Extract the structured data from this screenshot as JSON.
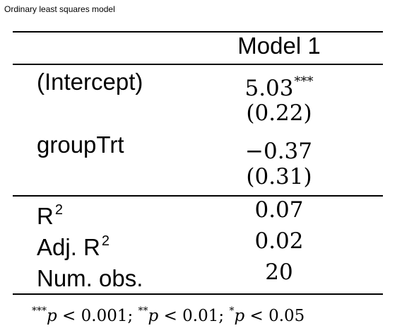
{
  "caption": "Ordinary least squares model",
  "table": {
    "model_header": "Model 1",
    "rows": [
      {
        "term": "(Intercept)",
        "estimate": "5.03",
        "stars": "***",
        "se": "(0.22)"
      },
      {
        "term": "groupTrt",
        "estimate": "−0.37",
        "stars": "",
        "se": "(0.31)"
      }
    ],
    "stats": [
      {
        "label": "R",
        "sup": "2",
        "value": "0.07"
      },
      {
        "label": "Adj. R",
        "sup": "2",
        "value": "0.02"
      },
      {
        "label": "Num. obs.",
        "sup": "",
        "value": "20"
      }
    ],
    "note": [
      {
        "stars": "***",
        "p": "p",
        "rel": " < 0.001; "
      },
      {
        "stars": "**",
        "p": "p",
        "rel": " < 0.01; "
      },
      {
        "stars": "*",
        "p": "p",
        "rel": " < 0.05"
      }
    ]
  }
}
